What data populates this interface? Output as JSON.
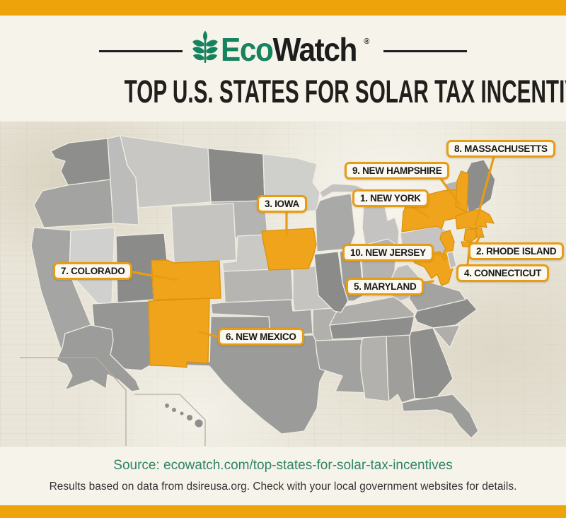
{
  "header": {
    "logo": {
      "text_primary": "Eco",
      "text_secondary": "Watch",
      "registered": "®"
    },
    "title": "TOP U.S. STATES FOR SOLAR TAX INCENTIVES"
  },
  "map": {
    "labels": [
      {
        "rank": 1,
        "text": "1. NEW YORK",
        "state": "New York"
      },
      {
        "rank": 2,
        "text": "2. RHODE ISLAND",
        "state": "Rhode Island"
      },
      {
        "rank": 3,
        "text": "3. IOWA",
        "state": "Iowa"
      },
      {
        "rank": 4,
        "text": "4. CONNECTICUT",
        "state": "Connecticut"
      },
      {
        "rank": 5,
        "text": "5. MARYLAND",
        "state": "Maryland"
      },
      {
        "rank": 6,
        "text": "6. NEW MEXICO",
        "state": "New Mexico"
      },
      {
        "rank": 7,
        "text": "7. COLORADO",
        "state": "Colorado"
      },
      {
        "rank": 8,
        "text": "8. MASSACHUSETTS",
        "state": "Massachusetts"
      },
      {
        "rank": 9,
        "text": "9. NEW HAMPSHIRE",
        "state": "New Hampshire"
      },
      {
        "rank": 10,
        "text": "10. NEW JERSEY",
        "state": "New Jersey"
      }
    ],
    "highlight_color": "#F0A41C",
    "callout_line_color": "#E89C15"
  },
  "footer": {
    "source": "Source: ecowatch.com/top-states-for-solar-tax-incentives",
    "disclaimer": "Results based on data from dsireusa.org. Check with your local government websites for details."
  },
  "colors": {
    "accent_orange": "#EFA30A",
    "brand_green": "#17835E",
    "source_green": "#2E8566",
    "cream": "#F6F3EB",
    "map_paper": "#E9E5D8",
    "ink": "#1C1C1C"
  }
}
